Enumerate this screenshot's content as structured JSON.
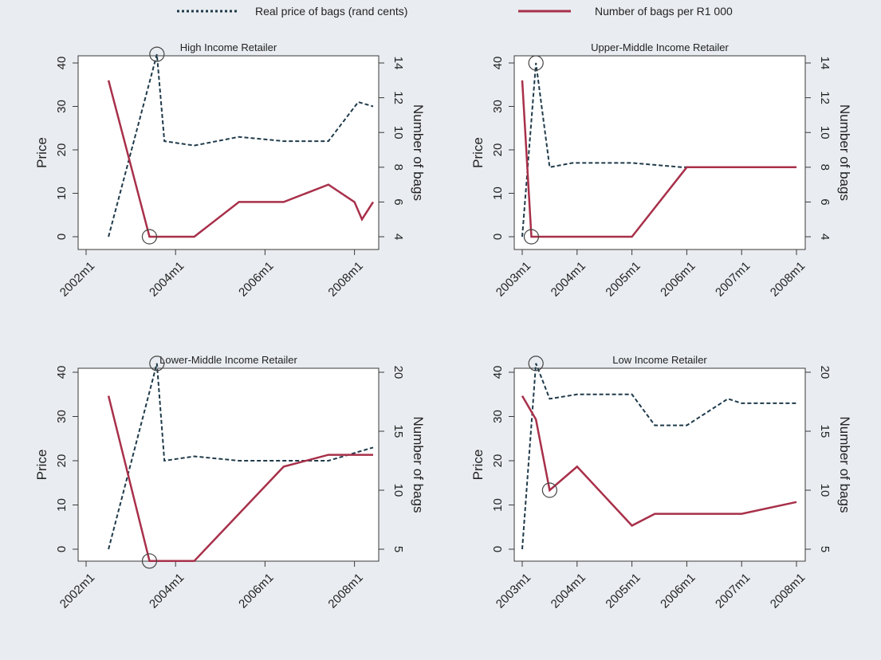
{
  "legend": {
    "price_label": "Real price of bags (rand cents)",
    "bags_label": "Number of bags per R1 000"
  },
  "colors": {
    "background": "#e9ecf0",
    "plot_area": "#ffffff",
    "price_line": "#1f3a4a",
    "bags_line": "#a8304a"
  },
  "chart_data": [
    {
      "type": "line",
      "title": "High Income Retailer",
      "ylabel": "Price",
      "y2label": "Number of bags",
      "xticks": [
        "2002m1",
        "2004m1",
        "2006m1",
        "2008m1"
      ],
      "xlim": [
        "2002m1",
        "2008m6"
      ],
      "ylim": [
        0,
        40
      ],
      "yticks": [
        0,
        10,
        20,
        30,
        40
      ],
      "y2lim": [
        4,
        14
      ],
      "y2ticks": [
        4,
        6,
        8,
        10,
        12,
        14
      ],
      "grid": false,
      "legend_position": "top",
      "series": [
        {
          "name": "Real price of bags (rand cents)",
          "axis": "left",
          "style": "dashed",
          "points": [
            [
              "2002m7",
              0
            ],
            [
              "2003m8",
              42
            ],
            [
              "2003m10",
              22
            ],
            [
              "2004m6",
              21
            ],
            [
              "2005m6",
              23
            ],
            [
              "2006m6",
              22
            ],
            [
              "2007m6",
              22
            ],
            [
              "2008m2",
              31
            ],
            [
              "2008m6",
              30
            ]
          ]
        },
        {
          "name": "Number of bags per R1 000",
          "axis": "right",
          "style": "solid",
          "points": [
            [
              "2002m7",
              13
            ],
            [
              "2003m6",
              4
            ],
            [
              "2004m6",
              4
            ],
            [
              "2005m6",
              6
            ],
            [
              "2006m6",
              6
            ],
            [
              "2007m6",
              7
            ],
            [
              "2008m1",
              6
            ],
            [
              "2008m3",
              5
            ],
            [
              "2008m6",
              6
            ]
          ]
        }
      ],
      "markers": [
        {
          "series": "Real price of bags (rand cents)",
          "x": "2003m8",
          "y": 42
        },
        {
          "series": "Number of bags per R1 000",
          "x": "2003m6",
          "y": 4
        }
      ]
    },
    {
      "type": "line",
      "title": "Upper-Middle Income Retailer",
      "ylabel": "Price",
      "y2label": "Number of bags",
      "xticks": [
        "2003m1",
        "2004m1",
        "2005m1",
        "2006m1",
        "2007m1",
        "2008m1"
      ],
      "xlim": [
        "2003m1",
        "2008m1"
      ],
      "ylim": [
        0,
        40
      ],
      "yticks": [
        0,
        10,
        20,
        30,
        40
      ],
      "y2lim": [
        4,
        14
      ],
      "y2ticks": [
        4,
        6,
        8,
        10,
        12,
        14
      ],
      "grid": false,
      "legend_position": "top",
      "series": [
        {
          "name": "Real price of bags (rand cents)",
          "axis": "left",
          "style": "dashed",
          "points": [
            [
              "2003m1",
              0
            ],
            [
              "2003m4",
              40
            ],
            [
              "2003m7",
              16
            ],
            [
              "2003m12",
              17
            ],
            [
              "2005m1",
              17
            ],
            [
              "2005m12",
              16
            ],
            [
              "2007m1",
              16
            ],
            [
              "2008m1",
              16
            ]
          ]
        },
        {
          "name": "Number of bags per R1 000",
          "axis": "right",
          "style": "solid",
          "points": [
            [
              "2003m1",
              13
            ],
            [
              "2003m3",
              4
            ],
            [
              "2005m1",
              4
            ],
            [
              "2006m1",
              8
            ],
            [
              "2007m1",
              8
            ],
            [
              "2008m1",
              8
            ]
          ]
        }
      ],
      "markers": [
        {
          "series": "Real price of bags (rand cents)",
          "x": "2003m4",
          "y": 40
        },
        {
          "series": "Number of bags per R1 000",
          "x": "2003m3",
          "y": 4
        }
      ]
    },
    {
      "type": "line",
      "title": "Lower-Middle Income Retailer",
      "ylabel": "Price",
      "y2label": "Number of bags",
      "xticks": [
        "2002m1",
        "2004m1",
        "2006m1",
        "2008m1"
      ],
      "xlim": [
        "2002m1",
        "2008m6"
      ],
      "ylim": [
        0,
        40
      ],
      "yticks": [
        0,
        10,
        20,
        30,
        40
      ],
      "y2lim": [
        5,
        20
      ],
      "y2ticks": [
        5,
        10,
        15,
        20
      ],
      "grid": false,
      "legend_position": "top",
      "series": [
        {
          "name": "Real price of bags (rand cents)",
          "axis": "left",
          "style": "dashed",
          "points": [
            [
              "2002m7",
              0
            ],
            [
              "2003m8",
              42
            ],
            [
              "2003m10",
              20
            ],
            [
              "2004m6",
              21
            ],
            [
              "2005m6",
              20
            ],
            [
              "2006m6",
              20
            ],
            [
              "2007m6",
              20
            ],
            [
              "2008m6",
              23
            ]
          ]
        },
        {
          "name": "Number of bags per R1 000",
          "axis": "right",
          "style": "solid",
          "points": [
            [
              "2002m7",
              18
            ],
            [
              "2003m6",
              4
            ],
            [
              "2004m6",
              4
            ],
            [
              "2006m6",
              12
            ],
            [
              "2007m6",
              13
            ],
            [
              "2008m6",
              13
            ]
          ]
        }
      ],
      "markers": [
        {
          "series": "Real price of bags (rand cents)",
          "x": "2003m8",
          "y": 42
        },
        {
          "series": "Number of bags per R1 000",
          "x": "2003m6",
          "y": 4
        }
      ]
    },
    {
      "type": "line",
      "title": "Low Income Retailer",
      "ylabel": "Price",
      "y2label": "Number of bags",
      "xticks": [
        "2003m1",
        "2004m1",
        "2005m1",
        "2006m1",
        "2007m1",
        "2008m1"
      ],
      "xlim": [
        "2003m1",
        "2008m1"
      ],
      "ylim": [
        0,
        40
      ],
      "yticks": [
        0,
        10,
        20,
        30,
        40
      ],
      "y2lim": [
        5,
        20
      ],
      "y2ticks": [
        5,
        10,
        15,
        20
      ],
      "grid": false,
      "legend_position": "top",
      "series": [
        {
          "name": "Real price of bags (rand cents)",
          "axis": "left",
          "style": "dashed",
          "points": [
            [
              "2003m1",
              0
            ],
            [
              "2003m4",
              42
            ],
            [
              "2003m7",
              34
            ],
            [
              "2004m1",
              35
            ],
            [
              "2005m1",
              35
            ],
            [
              "2005m6",
              28
            ],
            [
              "2006m1",
              28
            ],
            [
              "2006m10",
              34
            ],
            [
              "2007m1",
              33
            ],
            [
              "2008m1",
              33
            ]
          ]
        },
        {
          "name": "Number of bags per R1 000",
          "axis": "right",
          "style": "solid",
          "points": [
            [
              "2003m1",
              18
            ],
            [
              "2003m4",
              16
            ],
            [
              "2003m7",
              10
            ],
            [
              "2004m1",
              12
            ],
            [
              "2005m1",
              7
            ],
            [
              "2005m6",
              8
            ],
            [
              "2007m1",
              8
            ],
            [
              "2008m1",
              9
            ]
          ]
        }
      ],
      "markers": [
        {
          "series": "Real price of bags (rand cents)",
          "x": "2003m4",
          "y": 42
        },
        {
          "series": "Number of bags per R1 000",
          "x": "2003m7",
          "y": 10
        }
      ]
    }
  ]
}
